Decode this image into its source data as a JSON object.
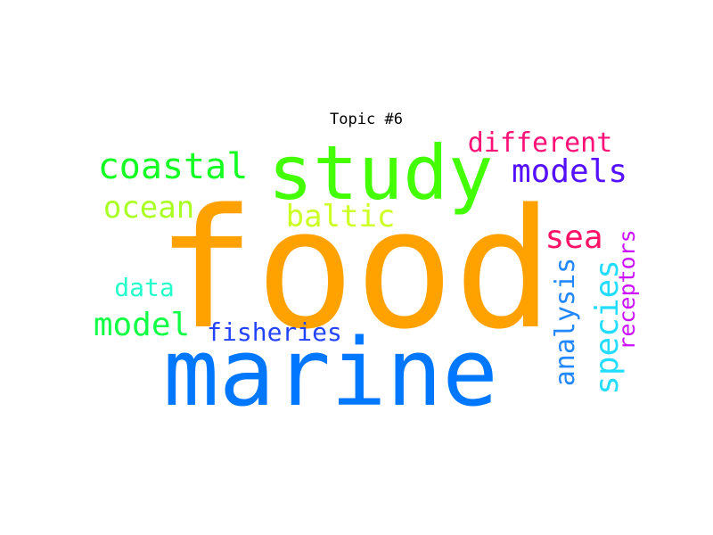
{
  "chart_data": {
    "type": "wordcloud",
    "title": "Topic #6",
    "words": [
      {
        "text": "food",
        "weight": 1.0,
        "color": "#ffa200"
      },
      {
        "text": "marine",
        "weight": 0.82,
        "color": "#0077ff"
      },
      {
        "text": "study",
        "weight": 0.62,
        "color": "#44ff00"
      },
      {
        "text": "coastal",
        "weight": 0.34,
        "color": "#11ff22"
      },
      {
        "text": "models",
        "weight": 0.29,
        "color": "#5511ff"
      },
      {
        "text": "ocean",
        "weight": 0.28,
        "color": "#aaff22"
      },
      {
        "text": "baltic",
        "weight": 0.28,
        "color": "#ccff22"
      },
      {
        "text": "model",
        "weight": 0.3,
        "color": "#11ff44"
      },
      {
        "text": "sea",
        "weight": 0.28,
        "color": "#ff1166"
      },
      {
        "text": "different",
        "weight": 0.24,
        "color": "#ff1177"
      },
      {
        "text": "species",
        "weight": 0.3,
        "color": "#22ddff"
      },
      {
        "text": "analysis",
        "weight": 0.26,
        "color": "#2288ff"
      },
      {
        "text": "fisheries",
        "weight": 0.25,
        "color": "#2244ff"
      },
      {
        "text": "data",
        "weight": 0.22,
        "color": "#22ffcc"
      },
      {
        "text": "receptors",
        "weight": 0.21,
        "color": "#cc11ff"
      }
    ]
  }
}
